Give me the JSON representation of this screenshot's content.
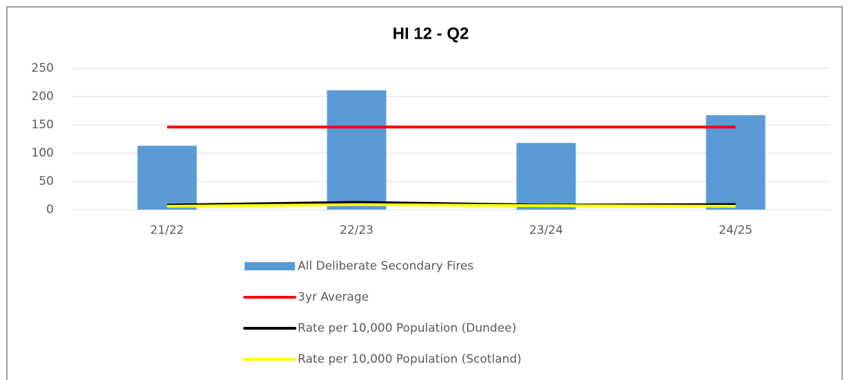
{
  "chart_data": {
    "type": "bar_line",
    "title": "HI 12 - Q2",
    "categories": [
      "21/22",
      "22/23",
      "23/24",
      "24/25"
    ],
    "series": [
      {
        "name": "All Deliberate Secondary Fires",
        "type": "bar",
        "color": "#5b9bd5",
        "values": [
          113,
          211,
          118,
          167
        ]
      },
      {
        "name": "3yr Average",
        "type": "line",
        "color": "#ff0000",
        "values": [
          146,
          146,
          146,
          146
        ]
      },
      {
        "name": "Rate per 10,000 Population (Dundee)",
        "type": "line",
        "color": "#000000",
        "values": [
          8,
          13,
          8,
          9
        ]
      },
      {
        "name": "Rate per 10,000 Population (Scotland)",
        "type": "line",
        "color": "#ffff00",
        "values": [
          6,
          9,
          7,
          6
        ]
      }
    ],
    "ylim": [
      0,
      250
    ],
    "yticks": [
      0,
      50,
      100,
      150,
      200,
      250
    ],
    "grid": true,
    "legend": "bottom"
  }
}
